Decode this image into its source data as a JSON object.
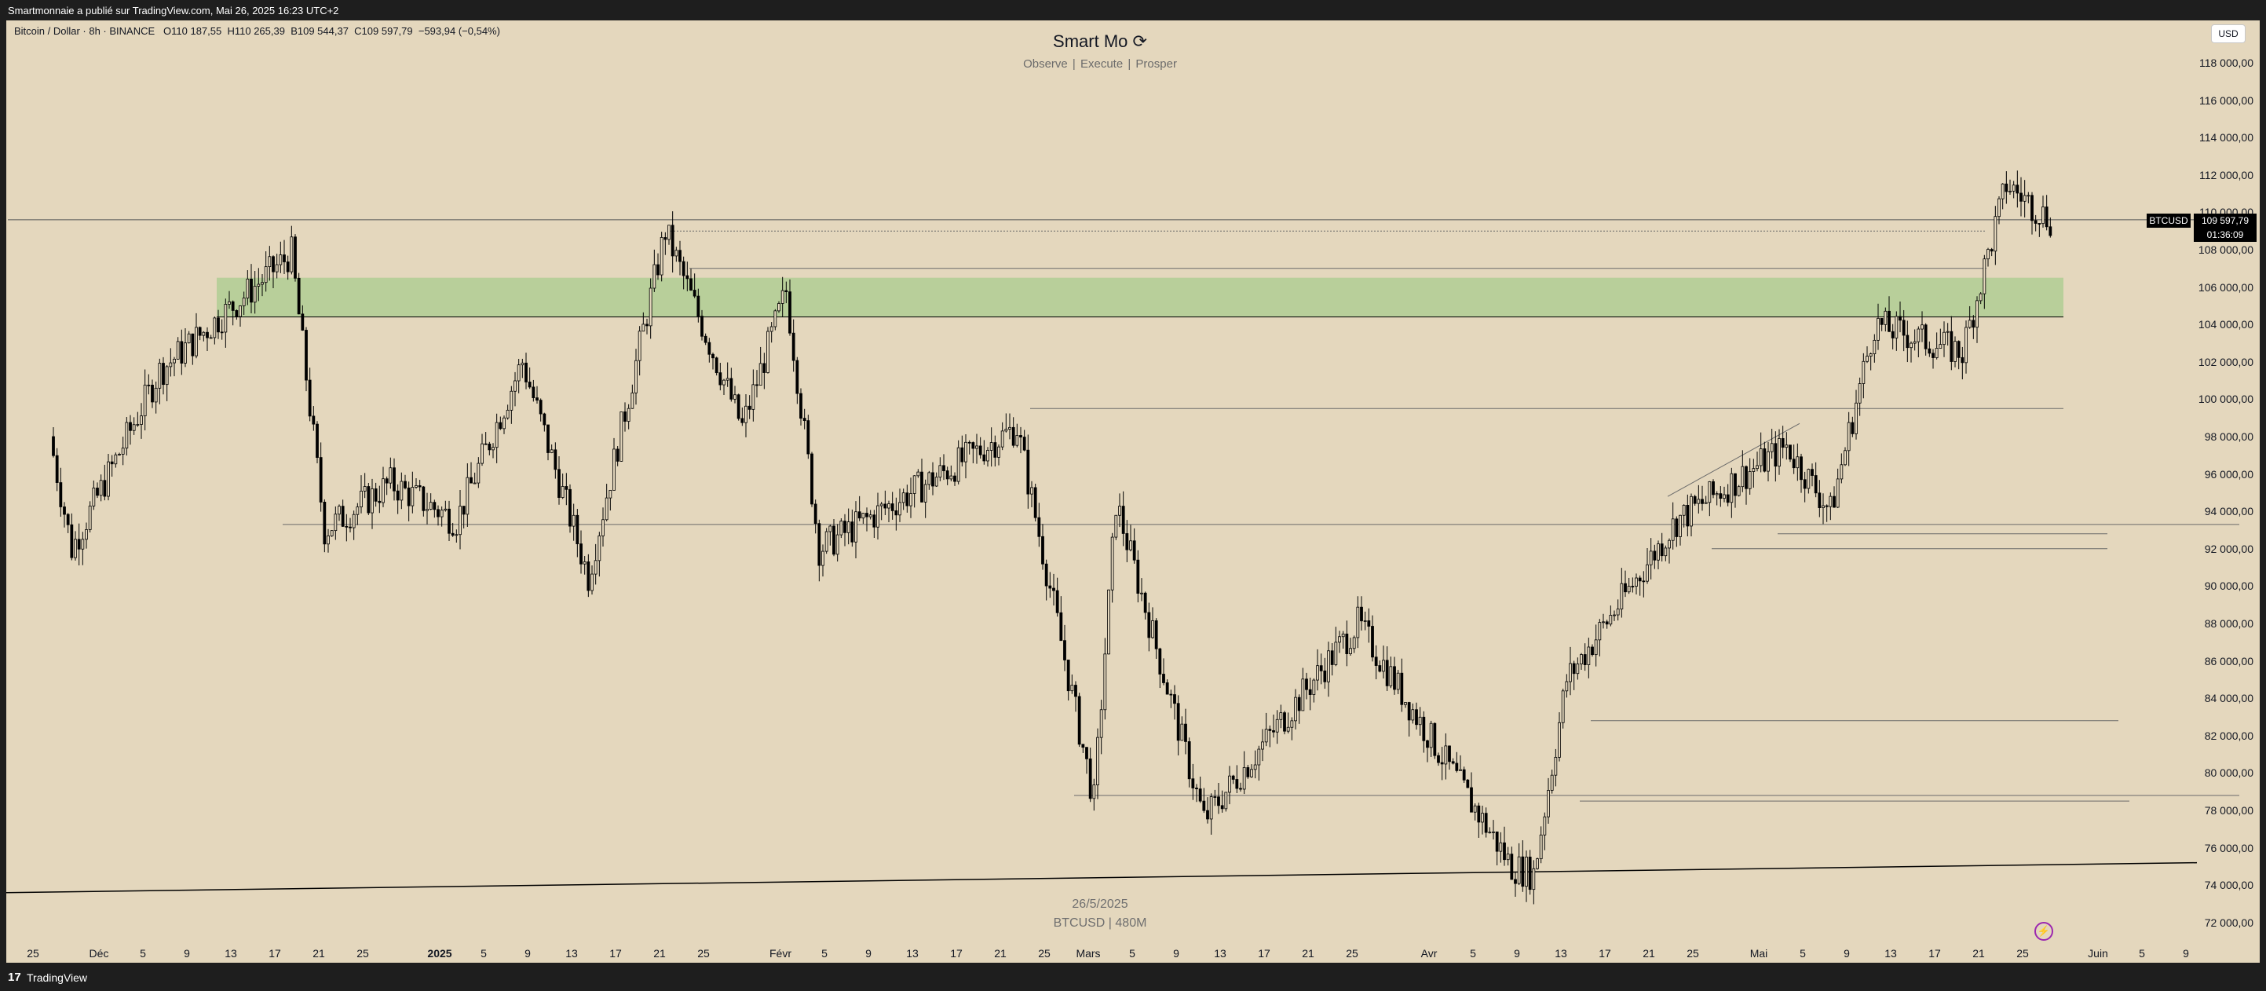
{
  "header": {
    "published": "Smartmonnaie a publié sur TradingView.com, Mai 26, 2025 16:23 UTC+2"
  },
  "legend": {
    "symbol": "Bitcoin / Dollar · 8h · BINANCE",
    "open": "O110 187,55",
    "high": "H110 265,39",
    "low": "B109 544,37",
    "close": "C109 597,79",
    "change": "−593,94 (−0,54%)"
  },
  "branding": {
    "title": "Smart Mo",
    "tagline": "Observe |  Execute |  Prosper",
    "logo_icon": "circular-arrow-icon"
  },
  "currency": "USD",
  "price_scale": [
    "118 000,00",
    "116 000,00",
    "114 000,00",
    "112 000,00",
    "110 000,00",
    "108 000,00",
    "106 000,00",
    "104 000,00",
    "102 000,00",
    "100 000,00",
    "98 000,00",
    "96 000,00",
    "94 000,00",
    "92 000,00",
    "90 000,00",
    "88 000,00",
    "86 000,00",
    "84 000,00",
    "82 000,00",
    "80 000,00",
    "78 000,00",
    "76 000,00",
    "74 000,00",
    "72 000,00"
  ],
  "time_axis": [
    {
      "label": "25",
      "x": 34
    },
    {
      "label": "Déc",
      "x": 118
    },
    {
      "label": "5",
      "x": 174
    },
    {
      "label": "9",
      "x": 230
    },
    {
      "label": "13",
      "x": 286
    },
    {
      "label": "17",
      "x": 342
    },
    {
      "label": "21",
      "x": 398
    },
    {
      "label": "25",
      "x": 454
    },
    {
      "label": "2025",
      "x": 552,
      "bold": true
    },
    {
      "label": "5",
      "x": 608
    },
    {
      "label": "9",
      "x": 664
    },
    {
      "label": "13",
      "x": 720
    },
    {
      "label": "17",
      "x": 776
    },
    {
      "label": "21",
      "x": 832
    },
    {
      "label": "25",
      "x": 888
    },
    {
      "label": "Févr",
      "x": 986
    },
    {
      "label": "5",
      "x": 1042
    },
    {
      "label": "9",
      "x": 1098
    },
    {
      "label": "13",
      "x": 1154
    },
    {
      "label": "17",
      "x": 1210
    },
    {
      "label": "21",
      "x": 1266
    },
    {
      "label": "25",
      "x": 1322
    },
    {
      "label": "Mars",
      "x": 1378
    },
    {
      "label": "5",
      "x": 1434
    },
    {
      "label": "9",
      "x": 1490
    },
    {
      "label": "13",
      "x": 1546
    },
    {
      "label": "17",
      "x": 1602
    },
    {
      "label": "21",
      "x": 1658
    },
    {
      "label": "25",
      "x": 1714
    },
    {
      "label": "Avr",
      "x": 1812
    },
    {
      "label": "5",
      "x": 1868
    },
    {
      "label": "9",
      "x": 1924
    },
    {
      "label": "13",
      "x": 1980
    },
    {
      "label": "17",
      "x": 2036
    },
    {
      "label": "21",
      "x": 2092
    },
    {
      "label": "25",
      "x": 2148
    },
    {
      "label": "Mai",
      "x": 2232
    },
    {
      "label": "5",
      "x": 2288
    },
    {
      "label": "9",
      "x": 2344
    },
    {
      "label": "13",
      "x": 2400
    },
    {
      "label": "17",
      "x": 2456
    },
    {
      "label": "21",
      "x": 2512
    },
    {
      "label": "25",
      "x": 2568
    },
    {
      "label": "Juin",
      "x": 2664
    },
    {
      "label": "5",
      "x": 2720
    },
    {
      "label": "9",
      "x": 2776
    }
  ],
  "price_tag": {
    "symbol": "BTCUSD",
    "value": "109 597,79",
    "countdown": "01:36:09"
  },
  "watermark": {
    "date": "26/5/2025",
    "symbol": "BTCUSD | 480M"
  },
  "footer": {
    "brand": "TradingView",
    "logo_icon": "tradingview-logo-icon"
  },
  "colors": {
    "background": "#e4d7bd",
    "zone": "#b8cf9a",
    "candle": "#000000"
  },
  "chart_data": {
    "type": "candlestick",
    "symbol": "BTCUSD",
    "ylim": [
      71000,
      120000
    ],
    "key_points": [
      {
        "date": "2024-11-25",
        "price": 98000
      },
      {
        "date": "2024-11-27",
        "price": 92000
      },
      {
        "date": "2024-12-05",
        "price": 101500
      },
      {
        "date": "2024-12-17",
        "price": 107800
      },
      {
        "date": "2024-12-20",
        "price": 93000
      },
      {
        "date": "2024-12-26",
        "price": 95500
      },
      {
        "date": "2025-01-01",
        "price": 93500
      },
      {
        "date": "2025-01-07",
        "price": 102000
      },
      {
        "date": "2025-01-13",
        "price": 90500
      },
      {
        "date": "2025-01-20",
        "price": 109000
      },
      {
        "date": "2025-01-27",
        "price": 98500
      },
      {
        "date": "2025-01-31",
        "price": 105800
      },
      {
        "date": "2025-02-03",
        "price": 92000
      },
      {
        "date": "2025-02-21",
        "price": 98500
      },
      {
        "date": "2025-02-28",
        "price": 78500
      },
      {
        "date": "2025-03-02",
        "price": 94500
      },
      {
        "date": "2025-03-10",
        "price": 77500
      },
      {
        "date": "2025-03-24",
        "price": 88000
      },
      {
        "date": "2025-04-07",
        "price": 75000
      },
      {
        "date": "2025-04-09",
        "price": 74600
      },
      {
        "date": "2025-04-12",
        "price": 85000
      },
      {
        "date": "2025-04-22",
        "price": 93500
      },
      {
        "date": "2025-05-02",
        "price": 97500
      },
      {
        "date": "2025-05-06",
        "price": 94000
      },
      {
        "date": "2025-05-10",
        "price": 104000
      },
      {
        "date": "2025-05-18",
        "price": 102500
      },
      {
        "date": "2025-05-22",
        "price": 111500
      },
      {
        "date": "2025-05-26",
        "price": 109598
      }
    ],
    "zones": [
      {
        "low": 104400,
        "high": 106500,
        "from": "2024-12-10",
        "to": "2025-05-27"
      }
    ],
    "levels": [
      109600,
      109000,
      107000,
      99500,
      93300,
      92800,
      92000,
      82800,
      78800,
      78500
    ]
  }
}
